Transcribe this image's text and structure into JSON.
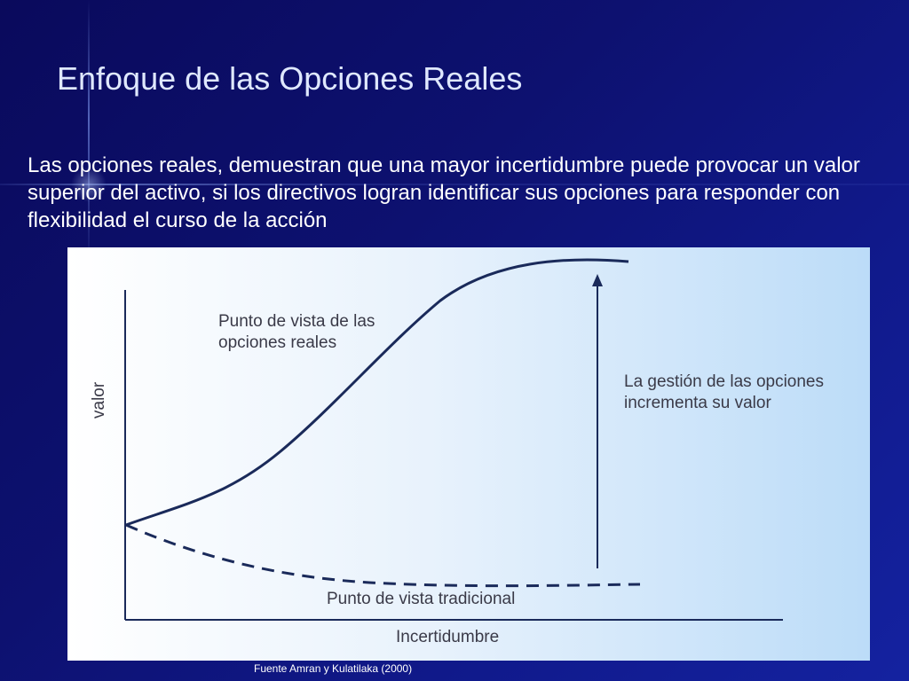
{
  "slide": {
    "title": "Enfoque de las Opciones Reales",
    "body": "Las opciones reales, demuestran que una mayor incertidumbre puede provocar un valor superior del activo, si los directivos logran identificar sus opciones para responder con flexibilidad el curso de la acción",
    "source": "Fuente Amran y Kulatilaka (2000)"
  },
  "diagram": {
    "y_axis_label": "valor",
    "x_axis_label": "Incertidumbre",
    "real_options_label_line1": "Punto de vista de las",
    "real_options_label_line2": "opciones reales",
    "traditional_label": "Punto de vista tradicional",
    "management_label_line1": "La gestión de las opciones",
    "management_label_line2": "incrementa su valor"
  },
  "colors": {
    "background": "#0d1170",
    "curve": "#1a2a5a",
    "figure_right": "#bcdcf8"
  }
}
